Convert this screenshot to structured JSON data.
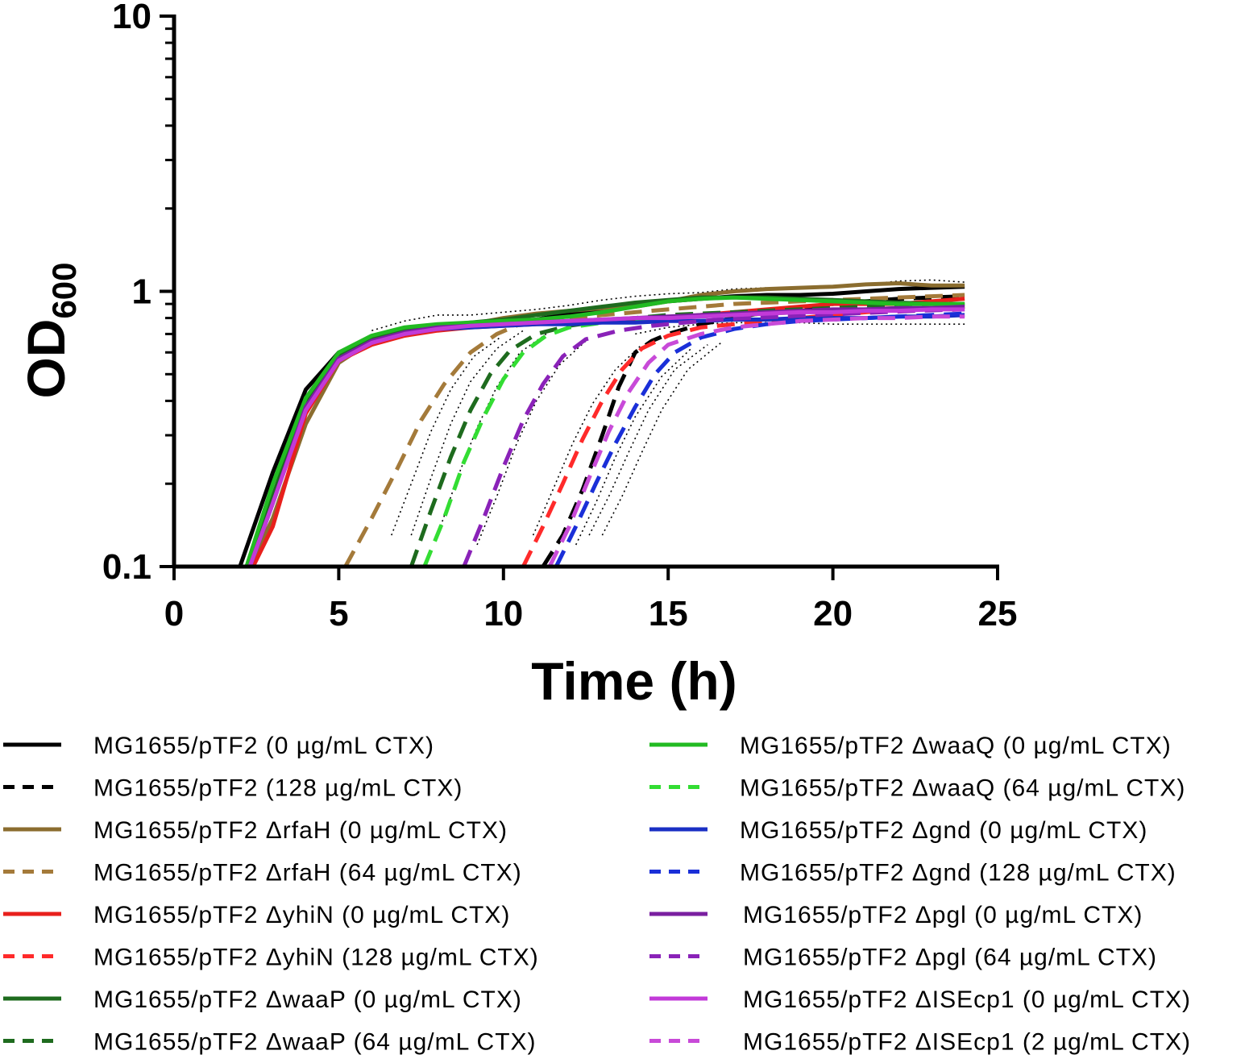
{
  "chart_data": {
    "type": "line",
    "title": "",
    "xlabel": "Time (h)",
    "ylabel": "OD",
    "ylabel_subscript": "600",
    "xlim": [
      0,
      25
    ],
    "ylim": [
      0.1,
      10
    ],
    "yscale": "log",
    "xticks": [
      0,
      5,
      10,
      15,
      20,
      25
    ],
    "xtick_labels": [
      "0",
      "5",
      "10",
      "15",
      "20",
      "25"
    ],
    "yticks": [
      0.1,
      1,
      10
    ],
    "ytick_labels": [
      "0.1",
      "1",
      "10"
    ],
    "grid": false,
    "legend_position": "bottom",
    "series": [
      {
        "name": "MG1655/pTF2 (0 µg/mL CTX)",
        "color": "#000000",
        "style": "solid",
        "x": [
          2,
          3,
          4,
          5,
          6,
          7,
          8,
          9,
          10,
          11,
          12,
          13,
          14,
          15,
          16,
          17,
          18,
          19,
          20,
          21,
          22,
          23,
          24
        ],
        "y": [
          0.1,
          0.22,
          0.44,
          0.6,
          0.67,
          0.72,
          0.74,
          0.76,
          0.77,
          0.79,
          0.83,
          0.86,
          0.9,
          0.92,
          0.94,
          0.96,
          0.97,
          0.97,
          0.98,
          1.0,
          1.02,
          1.03,
          1.04
        ]
      },
      {
        "name": "MG1655/pTF2 (128 µg/mL CTX)",
        "color": "#000000",
        "style": "dashed",
        "x": [
          11.2,
          11.8,
          12.4,
          13,
          13.5,
          14,
          14.5,
          15,
          16,
          17,
          18,
          19,
          20,
          21,
          22,
          23,
          24
        ],
        "y": [
          0.1,
          0.13,
          0.19,
          0.3,
          0.45,
          0.6,
          0.66,
          0.7,
          0.76,
          0.8,
          0.84,
          0.87,
          0.9,
          0.92,
          0.94,
          0.95,
          0.96
        ]
      },
      {
        "name": "MG1655/pTF2 ΔrfaH (0 µg/mL CTX)",
        "color": "#8b6d2f",
        "style": "solid",
        "x": [
          2.3,
          3,
          4,
          5,
          6,
          7,
          8,
          9,
          10,
          11,
          12,
          13,
          14,
          15,
          16,
          17,
          18,
          19,
          20,
          21,
          22,
          23,
          24
        ],
        "y": [
          0.1,
          0.15,
          0.33,
          0.55,
          0.66,
          0.71,
          0.74,
          0.76,
          0.8,
          0.83,
          0.85,
          0.87,
          0.88,
          0.92,
          0.97,
          1.0,
          1.02,
          1.03,
          1.04,
          1.06,
          1.07,
          1.05,
          1.05
        ]
      },
      {
        "name": "MG1655/pTF2 ΔrfaH (64 µg/mL CTX)",
        "color": "#a47a3a",
        "style": "dashed",
        "x": [
          5.2,
          6,
          6.8,
          7.5,
          8.2,
          9,
          9.8,
          10.5,
          11,
          12,
          13,
          14,
          15,
          16,
          17,
          18,
          19,
          20,
          21,
          22,
          23,
          24
        ],
        "y": [
          0.1,
          0.15,
          0.23,
          0.34,
          0.46,
          0.6,
          0.7,
          0.76,
          0.78,
          0.8,
          0.82,
          0.84,
          0.86,
          0.88,
          0.9,
          0.91,
          0.92,
          0.93,
          0.94,
          0.95,
          0.96,
          0.97
        ]
      },
      {
        "name": "MG1655/pTF2 ΔyhiN (0 µg/mL CTX)",
        "color": "#e8201c",
        "style": "solid",
        "x": [
          2.4,
          3,
          4,
          5,
          6,
          7,
          8,
          9,
          10,
          11,
          12,
          13,
          14,
          15,
          16,
          17,
          18,
          19,
          20,
          21,
          22,
          23,
          24
        ],
        "y": [
          0.1,
          0.14,
          0.36,
          0.56,
          0.64,
          0.69,
          0.72,
          0.74,
          0.75,
          0.76,
          0.77,
          0.78,
          0.79,
          0.8,
          0.82,
          0.84,
          0.86,
          0.88,
          0.9,
          0.9,
          0.9,
          0.92,
          0.94
        ]
      },
      {
        "name": "MG1655/pTF2 ΔyhiN (128 µg/mL CTX)",
        "color": "#ff2a2a",
        "style": "dashed",
        "x": [
          10.6,
          11.2,
          11.8,
          12.4,
          13,
          13.6,
          14.2,
          15,
          16,
          17,
          18,
          19,
          20,
          21,
          22,
          23,
          24
        ],
        "y": [
          0.1,
          0.14,
          0.2,
          0.29,
          0.4,
          0.52,
          0.62,
          0.69,
          0.74,
          0.76,
          0.78,
          0.8,
          0.82,
          0.84,
          0.86,
          0.87,
          0.88
        ]
      },
      {
        "name": "MG1655/pTF2 ΔwaaP (0 µg/mL CTX)",
        "color": "#1e6b1e",
        "style": "solid",
        "x": [
          2.3,
          3,
          4,
          5,
          6,
          7,
          8,
          9,
          10,
          11,
          12,
          13,
          14,
          15,
          16,
          17,
          18,
          19,
          20,
          21,
          22,
          23,
          24
        ],
        "y": [
          0.1,
          0.18,
          0.4,
          0.58,
          0.67,
          0.72,
          0.75,
          0.77,
          0.79,
          0.82,
          0.85,
          0.88,
          0.91,
          0.93,
          0.95,
          0.95,
          0.95,
          0.94,
          0.93,
          0.92,
          0.91,
          0.9,
          0.89
        ]
      },
      {
        "name": "MG1655/pTF2 ΔwaaP (64 µg/mL CTX)",
        "color": "#1e6b1e",
        "style": "dashed",
        "x": [
          7.2,
          7.8,
          8.4,
          9,
          9.6,
          10.2,
          11,
          12,
          13,
          14,
          15,
          16,
          17,
          18,
          19,
          20,
          21,
          22,
          23,
          24
        ],
        "y": [
          0.1,
          0.16,
          0.25,
          0.37,
          0.5,
          0.61,
          0.7,
          0.75,
          0.78,
          0.8,
          0.82,
          0.83,
          0.84,
          0.85,
          0.86,
          0.87,
          0.88,
          0.89,
          0.9,
          0.9
        ]
      },
      {
        "name": "MG1655/pTF2 ΔwaaQ (0 µg/mL CTX)",
        "color": "#22bb22",
        "style": "solid",
        "x": [
          2.2,
          3,
          4,
          5,
          6,
          7,
          8,
          9,
          10,
          11,
          12,
          13,
          14,
          15,
          16,
          17,
          18,
          19,
          20,
          21,
          22,
          23,
          24
        ],
        "y": [
          0.1,
          0.2,
          0.41,
          0.6,
          0.69,
          0.74,
          0.76,
          0.77,
          0.78,
          0.79,
          0.81,
          0.84,
          0.88,
          0.92,
          0.94,
          0.95,
          0.94,
          0.93,
          0.92,
          0.91,
          0.9,
          0.9,
          0.9
        ]
      },
      {
        "name": "MG1655/pTF2 ΔwaaQ (64 µg/mL CTX)",
        "color": "#33dd33",
        "style": "dashed",
        "x": [
          7.6,
          8.2,
          8.8,
          9.4,
          10,
          10.6,
          11.3,
          12,
          13,
          14,
          15,
          16,
          17,
          18,
          19,
          20,
          21,
          22,
          23,
          24
        ],
        "y": [
          0.1,
          0.15,
          0.24,
          0.35,
          0.48,
          0.6,
          0.69,
          0.74,
          0.77,
          0.79,
          0.8,
          0.81,
          0.82,
          0.83,
          0.84,
          0.85,
          0.86,
          0.87,
          0.87,
          0.88
        ]
      },
      {
        "name": "MG1655/pTF2 Δgnd (0 µg/mL CTX)",
        "color": "#1a2fc4",
        "style": "solid",
        "x": [
          2.3,
          3,
          4,
          5,
          6,
          7,
          8,
          9,
          10,
          11,
          12,
          13,
          14,
          15,
          16,
          17,
          18,
          19,
          20,
          21,
          22,
          23,
          24
        ],
        "y": [
          0.1,
          0.17,
          0.38,
          0.57,
          0.66,
          0.7,
          0.73,
          0.74,
          0.75,
          0.76,
          0.76,
          0.77,
          0.77,
          0.78,
          0.78,
          0.79,
          0.79,
          0.8,
          0.8,
          0.8,
          0.81,
          0.81,
          0.82
        ]
      },
      {
        "name": "MG1655/pTF2 Δgnd (128 µg/mL CTX)",
        "color": "#1a2fd8",
        "style": "dashed",
        "x": [
          11.6,
          12.2,
          12.8,
          13.4,
          14,
          14.6,
          15.2,
          16,
          17,
          18,
          19,
          20,
          21,
          22,
          23,
          24
        ],
        "y": [
          0.1,
          0.14,
          0.2,
          0.28,
          0.38,
          0.5,
          0.6,
          0.68,
          0.73,
          0.76,
          0.78,
          0.79,
          0.8,
          0.81,
          0.82,
          0.83
        ]
      },
      {
        "name": "MG1655/pTF2 Δpgl (0 µg/mL CTX)",
        "color": "#7a1fa0",
        "style": "solid",
        "x": [
          2.3,
          3,
          4,
          5,
          6,
          7,
          8,
          9,
          10,
          11,
          12,
          13,
          14,
          15,
          16,
          17,
          18,
          19,
          20,
          21,
          22,
          23,
          24
        ],
        "y": [
          0.1,
          0.17,
          0.38,
          0.57,
          0.66,
          0.71,
          0.74,
          0.75,
          0.76,
          0.77,
          0.78,
          0.79,
          0.8,
          0.81,
          0.82,
          0.83,
          0.84,
          0.85,
          0.86,
          0.86,
          0.87,
          0.87,
          0.88
        ]
      },
      {
        "name": "MG1655/pTF2 Δpgl (64 µg/mL CTX)",
        "color": "#8a22b8",
        "style": "dashed",
        "x": [
          8.8,
          9.4,
          10,
          10.6,
          11.2,
          11.8,
          12.5,
          13.5,
          14.5,
          15.5,
          16.5,
          17.5,
          18.5,
          19.5,
          20.5,
          21.5,
          22.5,
          24
        ],
        "y": [
          0.1,
          0.15,
          0.23,
          0.34,
          0.46,
          0.58,
          0.67,
          0.72,
          0.75,
          0.77,
          0.79,
          0.8,
          0.81,
          0.82,
          0.83,
          0.84,
          0.85,
          0.86
        ]
      },
      {
        "name": "MG1655/pTF2 ΔISEcp1 (0 µg/mL CTX)",
        "color": "#c23ad8",
        "style": "solid",
        "x": [
          2.3,
          3,
          4,
          5,
          6,
          7,
          8,
          9,
          10,
          11,
          12,
          13,
          14,
          15,
          16,
          17,
          18,
          19,
          20,
          21,
          22,
          23,
          24
        ],
        "y": [
          0.1,
          0.17,
          0.37,
          0.56,
          0.65,
          0.7,
          0.73,
          0.75,
          0.76,
          0.77,
          0.78,
          0.79,
          0.8,
          0.8,
          0.81,
          0.82,
          0.83,
          0.84,
          0.84,
          0.85,
          0.85,
          0.86,
          0.86
        ]
      },
      {
        "name": "MG1655/pTF2 ΔISEcp1 (2 µg/mL CTX)",
        "color": "#c84ad8",
        "style": "dashed",
        "x": [
          11.4,
          12,
          12.6,
          13.2,
          13.8,
          14.4,
          15,
          16,
          17,
          18,
          19,
          20,
          21,
          22,
          23,
          24
        ],
        "y": [
          0.1,
          0.14,
          0.21,
          0.31,
          0.43,
          0.55,
          0.64,
          0.7,
          0.74,
          0.76,
          0.78,
          0.79,
          0.8,
          0.8,
          0.81,
          0.81
        ]
      }
    ],
    "confidence_bands": [
      {
        "x": [
          7.2,
          7.8,
          8.4,
          9,
          9.8,
          10.6
        ],
        "y": [
          0.13,
          0.21,
          0.33,
          0.47,
          0.62,
          0.72
        ]
      },
      {
        "x": [
          8.0,
          8.6,
          9.2,
          9.8,
          10.5,
          11.3
        ],
        "y": [
          0.13,
          0.21,
          0.32,
          0.45,
          0.6,
          0.7
        ]
      },
      {
        "x": [
          9.2,
          9.8,
          10.4,
          11,
          11.7,
          12.5
        ],
        "y": [
          0.12,
          0.18,
          0.28,
          0.4,
          0.54,
          0.66
        ]
      },
      {
        "x": [
          6.6,
          7.2,
          7.8,
          8.4,
          9.1,
          9.9
        ],
        "y": [
          0.13,
          0.2,
          0.31,
          0.44,
          0.58,
          0.68
        ]
      },
      {
        "x": [
          10.9,
          11.5,
          12.1,
          12.7,
          13.4,
          14.2
        ],
        "y": [
          0.13,
          0.19,
          0.28,
          0.39,
          0.52,
          0.64
        ]
      },
      {
        "x": [
          12.2,
          12.8,
          13.4,
          14,
          14.8,
          15.7
        ],
        "y": [
          0.12,
          0.17,
          0.25,
          0.35,
          0.49,
          0.62
        ]
      },
      {
        "x": [
          12.6,
          13.2,
          13.8,
          14.4,
          15.2,
          16.2
        ],
        "y": [
          0.13,
          0.18,
          0.26,
          0.37,
          0.52,
          0.64
        ]
      },
      {
        "x": [
          13,
          13.6,
          14.2,
          14.8,
          15.6,
          16.6
        ],
        "y": [
          0.13,
          0.18,
          0.26,
          0.37,
          0.52,
          0.65
        ]
      },
      {
        "x": [
          14,
          15,
          16,
          17,
          18,
          19,
          20,
          21,
          22,
          23,
          24
        ],
        "y": [
          0.7,
          0.74,
          0.76,
          0.77,
          0.77,
          0.77,
          0.76,
          0.76,
          0.76,
          0.76,
          0.76
        ]
      },
      {
        "x": [
          6,
          7,
          8,
          9,
          10,
          11,
          12,
          13,
          14,
          15,
          16,
          17,
          18,
          19,
          20,
          21,
          22,
          23,
          24
        ],
        "y": [
          0.72,
          0.78,
          0.82,
          0.82,
          0.84,
          0.86,
          0.89,
          0.93,
          0.96,
          0.98,
          0.99,
          1.02,
          1.03,
          1.03,
          1.04,
          1.06,
          1.09,
          1.1,
          1.08
        ]
      }
    ]
  }
}
